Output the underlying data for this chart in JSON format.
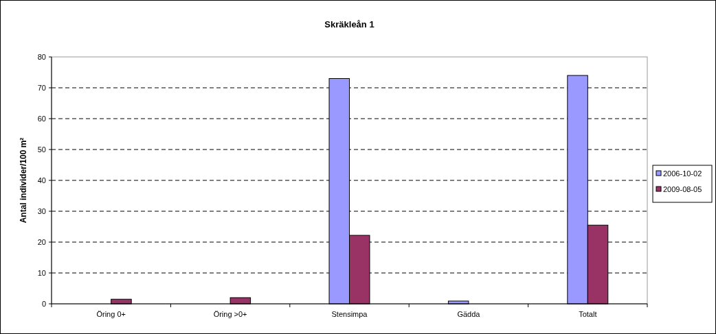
{
  "chart_data": {
    "type": "bar",
    "title": "Skräkleån 1",
    "ylabel": "Antal individer/100 m²",
    "categories": [
      "Öring 0+",
      "Öring >0+",
      "Stensimpa",
      "Gädda",
      "Totalt"
    ],
    "series": [
      {
        "name": "2006-10-02",
        "color": "#9999ff",
        "values": [
          0,
          0,
          73,
          0.9,
          74
        ]
      },
      {
        "name": "2009-08-05",
        "color": "#993366",
        "values": [
          1.5,
          2,
          22.2,
          0,
          25.5
        ]
      }
    ],
    "ylim": [
      0,
      80
    ],
    "yticks": [
      0,
      10,
      20,
      30,
      40,
      50,
      60,
      70,
      80
    ],
    "grid": "y",
    "line_style": "dashed",
    "legend": "right"
  }
}
